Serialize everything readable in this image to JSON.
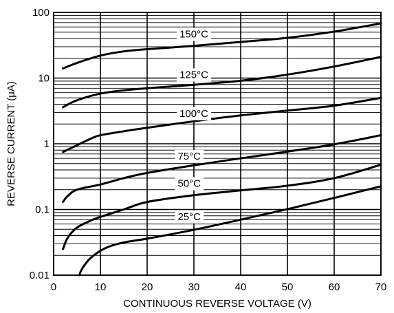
{
  "chart_data": {
    "type": "line",
    "title": "",
    "xlabel": "CONTINUOUS REVERSE VOLTAGE (V)",
    "ylabel": "REVERSE CURRENT (μA)",
    "xlim": [
      0,
      70
    ],
    "ylim": [
      0.01,
      100
    ],
    "yscale": "log",
    "grid": true,
    "xticks": [
      0,
      10,
      20,
      30,
      40,
      50,
      60,
      70
    ],
    "xtick_labels": [
      "0",
      "10",
      "20",
      "30",
      "40",
      "50",
      "60",
      "70"
    ],
    "yticks": [
      0.01,
      0.1,
      1,
      10,
      100
    ],
    "ytick_labels": [
      "0.01",
      "0.1",
      "1",
      "10",
      "100"
    ],
    "series": [
      {
        "name": "150°C",
        "x": [
          2,
          5,
          10,
          15,
          20,
          30,
          40,
          50,
          60,
          70
        ],
        "y": [
          14,
          17,
          22,
          25.5,
          27.5,
          31,
          35.5,
          41,
          51,
          68
        ]
      },
      {
        "name": "125°C",
        "x": [
          2,
          5,
          10,
          15,
          20,
          30,
          40,
          50,
          60,
          70
        ],
        "y": [
          3.6,
          4.6,
          5.8,
          6.5,
          7,
          7.9,
          9.1,
          11.3,
          15,
          21
        ]
      },
      {
        "name": "100°C",
        "x": [
          2,
          5,
          8,
          10,
          15,
          20,
          30,
          40,
          50,
          60,
          70
        ],
        "y": [
          0.75,
          0.95,
          1.2,
          1.35,
          1.55,
          1.75,
          2.2,
          2.7,
          3.2,
          3.8,
          5
        ]
      },
      {
        "name": "75°C",
        "x": [
          2,
          3,
          5,
          10,
          15,
          20,
          30,
          40,
          50,
          60,
          70
        ],
        "y": [
          0.13,
          0.16,
          0.2,
          0.24,
          0.3,
          0.36,
          0.47,
          0.6,
          0.76,
          0.98,
          1.35
        ]
      },
      {
        "name": "50°C",
        "x": [
          2,
          3,
          5,
          8,
          10,
          15,
          20,
          30,
          40,
          50,
          60,
          70
        ],
        "y": [
          0.025,
          0.037,
          0.053,
          0.068,
          0.077,
          0.1,
          0.13,
          0.165,
          0.195,
          0.23,
          0.3,
          0.48
        ]
      },
      {
        "name": "25°C",
        "x": [
          5.5,
          6,
          7,
          8,
          10,
          12,
          15,
          20,
          30,
          40,
          50,
          60,
          70
        ],
        "y": [
          0.01,
          0.0122,
          0.0155,
          0.0185,
          0.0235,
          0.0275,
          0.0315,
          0.036,
          0.049,
          0.07,
          0.101,
          0.15,
          0.225
        ]
      }
    ],
    "curve_labels": [
      {
        "series": "150°C",
        "text": "150°C",
        "x": 30,
        "y": 47
      },
      {
        "series": "125°C",
        "text": "125°C",
        "x": 30,
        "y": 11.3
      },
      {
        "series": "100°C",
        "text": "100°C",
        "x": 30,
        "y": 2.9
      },
      {
        "series": "75°C",
        "text": "75°C",
        "x": 29,
        "y": 0.65
      },
      {
        "series": "50°C",
        "text": "50°C",
        "x": 29,
        "y": 0.25
      },
      {
        "series": "25°C",
        "text": "25°C",
        "x": 29,
        "y": 0.078
      }
    ]
  }
}
